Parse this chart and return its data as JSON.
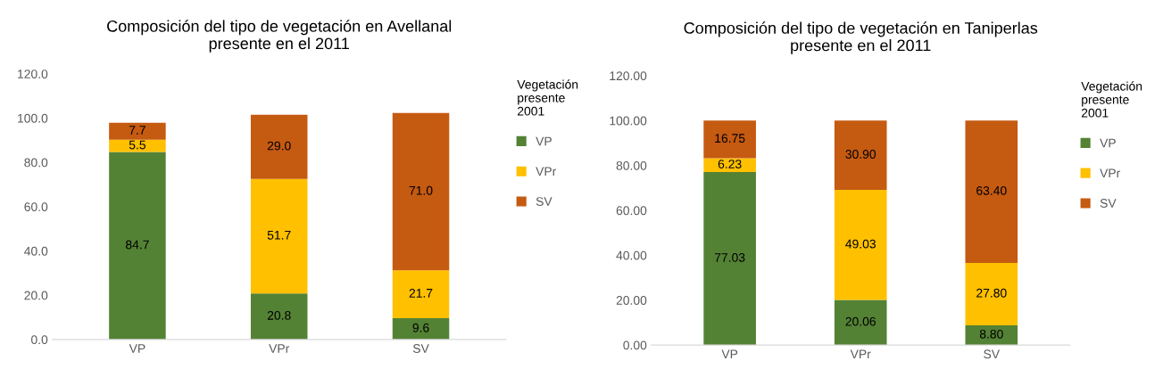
{
  "chart_data": [
    {
      "type": "bar",
      "stacked": true,
      "title": "Composición del tipo de vegetación en Avellanal\npresente en el 2011",
      "categories": [
        "VP",
        "VPr",
        "SV"
      ],
      "legend_title": "Vegetación\npresente\n2001",
      "legend": "right",
      "grid": false,
      "ylim": [
        0,
        120
      ],
      "yticks": [
        {
          "value": 0,
          "label": "0.0"
        },
        {
          "value": 20,
          "label": "20.0"
        },
        {
          "value": 40,
          "label": "40.0"
        },
        {
          "value": 60,
          "label": "60.0"
        },
        {
          "value": 80,
          "label": "80.0"
        },
        {
          "value": 100,
          "label": "100.0"
        },
        {
          "value": 120,
          "label": "120.0"
        }
      ],
      "series": [
        {
          "name": "VP",
          "color": "#548235",
          "values": [
            84.7,
            20.8,
            9.6
          ],
          "value_labels": [
            "84.7",
            "20.8",
            "9.6"
          ]
        },
        {
          "name": "VPr",
          "color": "#ffc000",
          "values": [
            5.5,
            51.7,
            21.7
          ],
          "value_labels": [
            "5.5",
            "51.7",
            "21.7"
          ]
        },
        {
          "name": "SV",
          "color": "#c55a11",
          "values": [
            7.7,
            29.0,
            71.0
          ],
          "value_labels": [
            "7.7",
            "29.0",
            "71.0"
          ]
        }
      ]
    },
    {
      "type": "bar",
      "stacked": true,
      "title": "Composición del tipo de vegetación en Taniperlas\npresente en el 2011",
      "categories": [
        "VP",
        "VPr",
        "SV"
      ],
      "legend_title": "Vegetación\npresente\n2001",
      "legend": "right",
      "grid": false,
      "ylim": [
        0,
        120
      ],
      "yticks": [
        {
          "value": 0,
          "label": "0.00"
        },
        {
          "value": 20,
          "label": "20.00"
        },
        {
          "value": 40,
          "label": "40.00"
        },
        {
          "value": 60,
          "label": "60.00"
        },
        {
          "value": 80,
          "label": "80.00"
        },
        {
          "value": 100,
          "label": "100.00"
        },
        {
          "value": 120,
          "label": "120.00"
        }
      ],
      "series": [
        {
          "name": "VP",
          "color": "#548235",
          "values": [
            77.03,
            20.06,
            8.8
          ],
          "value_labels": [
            "77.03",
            "20.06",
            "8.80"
          ]
        },
        {
          "name": "VPr",
          "color": "#ffc000",
          "values": [
            6.23,
            49.03,
            27.8
          ],
          "value_labels": [
            "6.23",
            "49.03",
            "27.80"
          ]
        },
        {
          "name": "SV",
          "color": "#c55a11",
          "values": [
            16.75,
            30.9,
            63.4
          ],
          "value_labels": [
            "16.75",
            "30.90",
            "63.40"
          ]
        }
      ]
    }
  ]
}
